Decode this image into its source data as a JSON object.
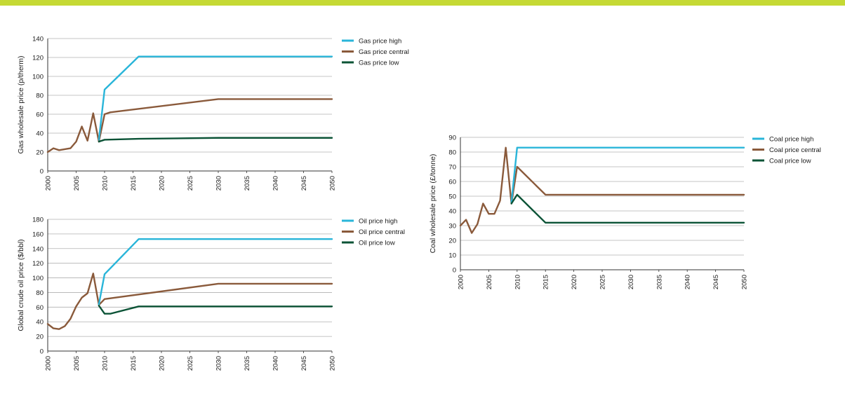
{
  "theme": {
    "top_bar_color": "#c5d934",
    "gridline_color": "#b0b0b0",
    "axis_color": "#333333"
  },
  "chart_data": [
    {
      "id": "gas",
      "type": "line",
      "ylabel": "Gas wholesale price (p/therm)",
      "ylim": [
        0,
        140
      ],
      "y_ticks": [
        0,
        20,
        40,
        60,
        80,
        100,
        120,
        140
      ],
      "xlim": [
        2000,
        2050
      ],
      "x_ticks": [
        2000,
        2005,
        2010,
        2015,
        2020,
        2025,
        2030,
        2035,
        2040,
        2045,
        2050
      ],
      "grid": true,
      "legend_position": "top-right",
      "series": [
        {
          "name": "Gas price high",
          "color": "#29b5d9",
          "points": [
            [
              2009,
              33
            ],
            [
              2010,
              86
            ],
            [
              2016,
              121
            ],
            [
              2050,
              121
            ]
          ]
        },
        {
          "name": "Gas price central",
          "color": "#8a5a3b",
          "points": [
            [
              2000,
              20
            ],
            [
              2001,
              24
            ],
            [
              2002,
              22
            ],
            [
              2003,
              23
            ],
            [
              2004,
              24
            ],
            [
              2005,
              31
            ],
            [
              2006,
              47
            ],
            [
              2007,
              32
            ],
            [
              2008,
              61
            ],
            [
              2009,
              31
            ],
            [
              2010,
              60
            ],
            [
              2011,
              62
            ],
            [
              2030,
              76
            ],
            [
              2050,
              76
            ]
          ]
        },
        {
          "name": "Gas price low",
          "color": "#0b5336",
          "points": [
            [
              2009,
              31
            ],
            [
              2010,
              33
            ],
            [
              2016,
              34
            ],
            [
              2030,
              35
            ],
            [
              2050,
              35
            ]
          ]
        }
      ]
    },
    {
      "id": "oil",
      "type": "line",
      "ylabel": "Global crude oil price ($/bbl)",
      "ylim": [
        0,
        180
      ],
      "y_ticks": [
        0,
        20,
        40,
        60,
        80,
        100,
        120,
        140,
        160,
        180
      ],
      "xlim": [
        2000,
        2050
      ],
      "x_ticks": [
        2000,
        2005,
        2010,
        2015,
        2020,
        2025,
        2030,
        2035,
        2040,
        2045,
        2050
      ],
      "grid": true,
      "legend_position": "top-right",
      "series": [
        {
          "name": "Oil price high",
          "color": "#29b5d9",
          "points": [
            [
              2009,
              64
            ],
            [
              2010,
              105
            ],
            [
              2016,
              153
            ],
            [
              2050,
              153
            ]
          ]
        },
        {
          "name": "Oil price central",
          "color": "#8a5a3b",
          "points": [
            [
              2000,
              37
            ],
            [
              2001,
              31
            ],
            [
              2002,
              30
            ],
            [
              2003,
              34
            ],
            [
              2004,
              44
            ],
            [
              2005,
              61
            ],
            [
              2006,
              73
            ],
            [
              2007,
              79
            ],
            [
              2008,
              106
            ],
            [
              2009,
              63
            ],
            [
              2010,
              71
            ],
            [
              2030,
              92
            ],
            [
              2050,
              92
            ]
          ]
        },
        {
          "name": "Oil price low",
          "color": "#0b5336",
          "points": [
            [
              2009,
              62
            ],
            [
              2010,
              51
            ],
            [
              2011,
              51
            ],
            [
              2016,
              61
            ],
            [
              2050,
              61
            ]
          ]
        }
      ]
    },
    {
      "id": "coal",
      "type": "line",
      "ylabel": "Coal wholesale price (£/tonne)",
      "ylim": [
        0,
        90
      ],
      "y_ticks": [
        0,
        10,
        20,
        30,
        40,
        50,
        60,
        70,
        80,
        90
      ],
      "xlim": [
        2000,
        2050
      ],
      "x_ticks": [
        2000,
        2005,
        2010,
        2015,
        2020,
        2025,
        2030,
        2035,
        2040,
        2045,
        2050
      ],
      "grid": true,
      "legend_position": "top-right",
      "series": [
        {
          "name": "Coal price high",
          "color": "#29b5d9",
          "points": [
            [
              2009,
              46
            ],
            [
              2010,
              83
            ],
            [
              2050,
              83
            ]
          ]
        },
        {
          "name": "Coal price central",
          "color": "#8a5a3b",
          "points": [
            [
              2000,
              30
            ],
            [
              2001,
              34
            ],
            [
              2002,
              25
            ],
            [
              2003,
              31
            ],
            [
              2004,
              45
            ],
            [
              2005,
              38
            ],
            [
              2006,
              38
            ],
            [
              2007,
              47
            ],
            [
              2008,
              83
            ],
            [
              2009,
              45
            ],
            [
              2010,
              70
            ],
            [
              2015,
              51
            ],
            [
              2050,
              51
            ]
          ]
        },
        {
          "name": "Coal price low",
          "color": "#0b5336",
          "points": [
            [
              2009,
              45
            ],
            [
              2010,
              51
            ],
            [
              2015,
              32
            ],
            [
              2050,
              32
            ]
          ]
        }
      ]
    }
  ]
}
